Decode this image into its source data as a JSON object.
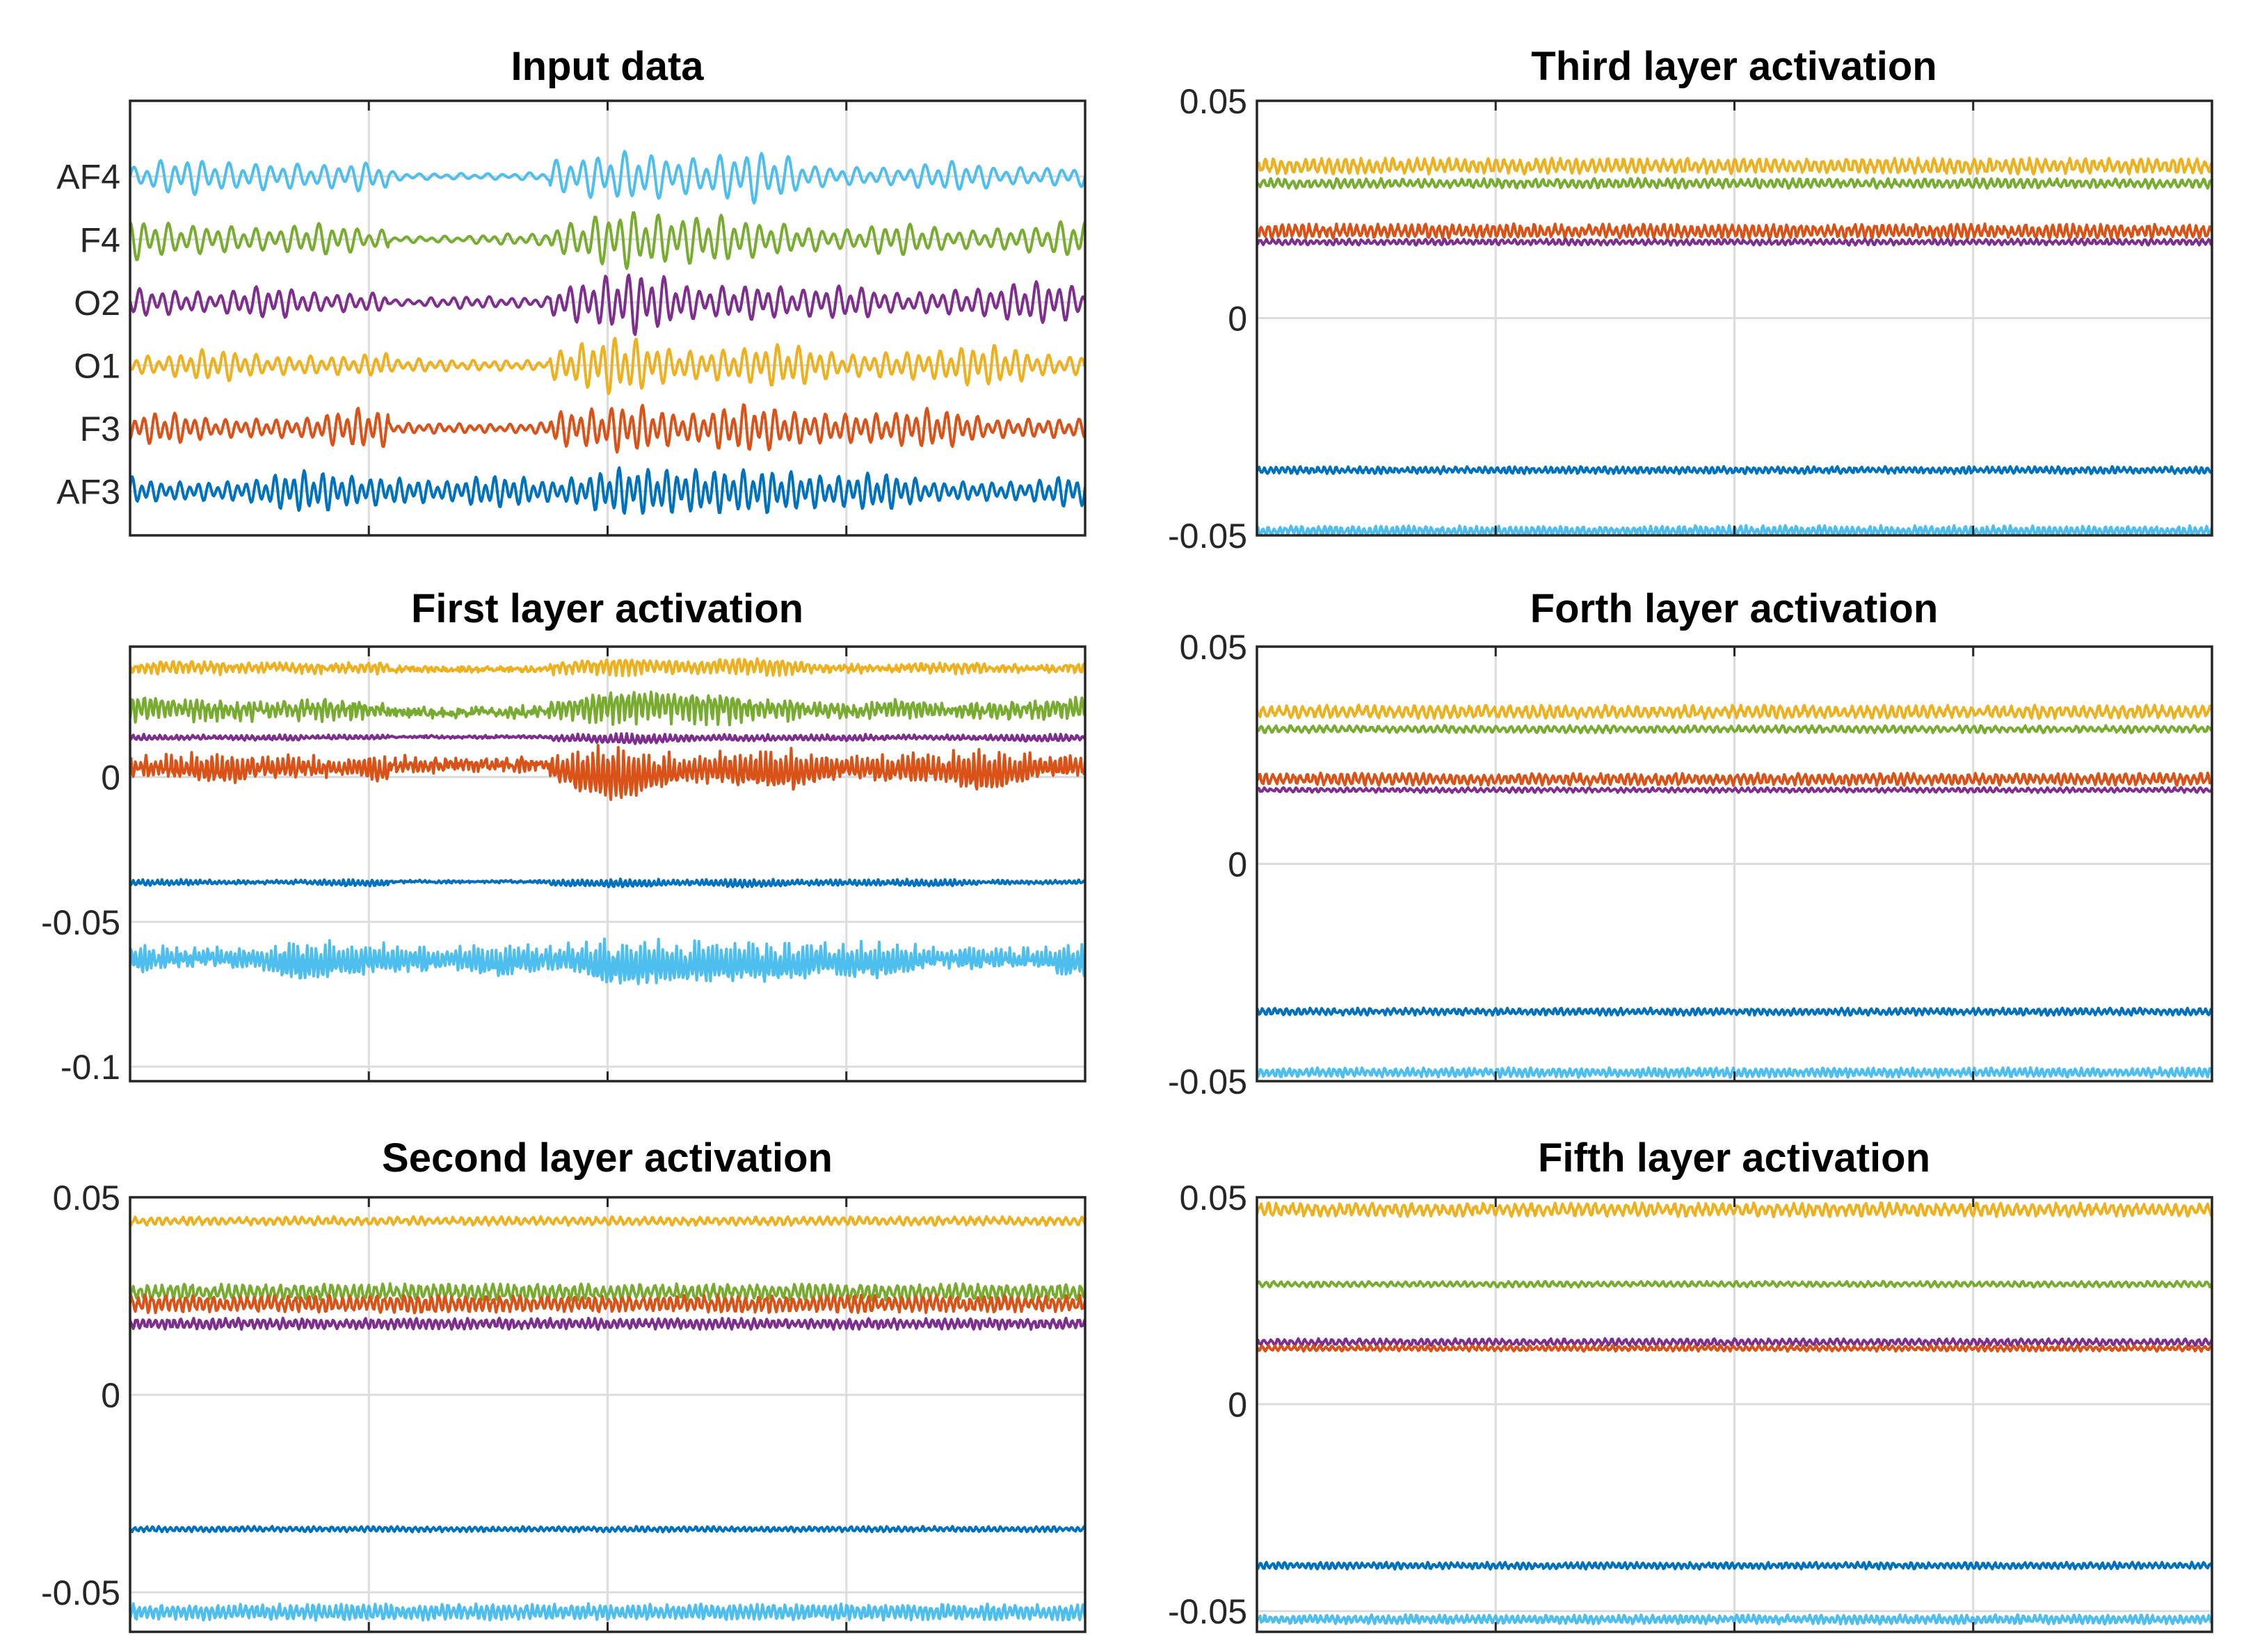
{
  "figure": {
    "series_colors": {
      "AF3": "#0072BD",
      "F3": "#D95319",
      "O1": "#EDB120",
      "O2": "#7E2F8E",
      "F4": "#77AC30",
      "AF4": "#4DBEEE"
    },
    "grid_color": "#dcdcdc",
    "axes_color": "#262626"
  },
  "chart_data": [
    {
      "id": "input",
      "type": "line",
      "title": "Input data",
      "ytick_labels": [
        "AF4",
        "F4",
        "O2",
        "O1",
        "F3",
        "AF3"
      ],
      "x_ticks": 4,
      "grid": true,
      "series": [
        {
          "name": "AF4",
          "color": "#4DBEEE",
          "offset": 6,
          "amplitude": 0.28
        },
        {
          "name": "F4",
          "color": "#77AC30",
          "offset": 5,
          "amplitude": 0.3
        },
        {
          "name": "O2",
          "color": "#7E2F8E",
          "offset": 4,
          "amplitude": 0.3
        },
        {
          "name": "O1",
          "color": "#EDB120",
          "offset": 3,
          "amplitude": 0.3
        },
        {
          "name": "F3",
          "color": "#D95319",
          "offset": 2,
          "amplitude": 0.3
        },
        {
          "name": "AF3",
          "color": "#0072BD",
          "offset": 1,
          "amplitude": 0.3
        }
      ]
    },
    {
      "id": "third",
      "type": "line",
      "title": "Third layer activation",
      "ylim": [
        -0.05,
        0.05
      ],
      "yticks": [
        -0.05,
        0,
        0.05
      ],
      "ytick_labels": [
        "-0.05",
        "0",
        "0.05"
      ],
      "grid": true,
      "series": [
        {
          "color": "#EDB120",
          "level": 0.035,
          "amplitude": 0.0013
        },
        {
          "color": "#77AC30",
          "level": 0.031,
          "amplitude": 0.0008
        },
        {
          "color": "#D95319",
          "level": 0.02,
          "amplitude": 0.0012
        },
        {
          "color": "#7E2F8E",
          "level": 0.0175,
          "amplitude": 0.0005
        },
        {
          "color": "#0072BD",
          "level": -0.035,
          "amplitude": 0.0006
        },
        {
          "color": "#4DBEEE",
          "level": -0.049,
          "amplitude": 0.0009
        }
      ]
    },
    {
      "id": "first",
      "type": "line",
      "title": "First layer activation",
      "ylim": [
        -0.105,
        0.045
      ],
      "yticks": [
        -0.1,
        -0.05,
        0
      ],
      "ytick_labels": [
        "-0.1",
        "-0.05",
        "0"
      ],
      "grid": true,
      "series": [
        {
          "color": "#EDB120",
          "level": 0.037,
          "amplitude": 0.0065
        },
        {
          "color": "#77AC30",
          "level": 0.022,
          "amplitude": 0.012
        },
        {
          "color": "#7E2F8E",
          "level": 0.014,
          "amplitude": 0.0025
        },
        {
          "color": "#D95319",
          "level": 0.005,
          "amplitude": 0.013
        },
        {
          "color": "#0072BD",
          "level": -0.036,
          "amplitude": 0.0025
        },
        {
          "color": "#4DBEEE",
          "level": -0.061,
          "amplitude": 0.013
        }
      ]
    },
    {
      "id": "forth",
      "type": "line",
      "title": "Forth layer activation",
      "ylim": [
        -0.05,
        0.05
      ],
      "yticks": [
        -0.05,
        0,
        0.05
      ],
      "ytick_labels": [
        "-0.05",
        "0",
        "0.05"
      ],
      "grid": true,
      "series": [
        {
          "color": "#EDB120",
          "level": 0.035,
          "amplitude": 0.0011
        },
        {
          "color": "#77AC30",
          "level": 0.031,
          "amplitude": 0.0006
        },
        {
          "color": "#D95319",
          "level": 0.0195,
          "amplitude": 0.001
        },
        {
          "color": "#7E2F8E",
          "level": 0.017,
          "amplitude": 0.0004
        },
        {
          "color": "#0072BD",
          "level": -0.034,
          "amplitude": 0.0006
        },
        {
          "color": "#4DBEEE",
          "level": -0.048,
          "amplitude": 0.0008
        }
      ]
    },
    {
      "id": "second",
      "type": "line",
      "title": "Second layer activation",
      "ylim": [
        -0.06,
        0.05
      ],
      "yticks": [
        -0.05,
        0,
        0.05
      ],
      "ytick_labels": [
        "-0.05",
        "0",
        "0.05"
      ],
      "grid": true,
      "series": [
        {
          "color": "#EDB120",
          "level": 0.044,
          "amplitude": 0.0008
        },
        {
          "color": "#77AC30",
          "level": 0.026,
          "amplitude": 0.0015
        },
        {
          "color": "#D95319",
          "level": 0.023,
          "amplitude": 0.0016
        },
        {
          "color": "#7E2F8E",
          "level": 0.018,
          "amplitude": 0.001
        },
        {
          "color": "#0072BD",
          "level": -0.034,
          "amplitude": 0.0005
        },
        {
          "color": "#4DBEEE",
          "level": -0.055,
          "amplitude": 0.0015
        }
      ]
    },
    {
      "id": "fifth",
      "type": "line",
      "title": "Fifth layer activation",
      "ylim": [
        -0.055,
        0.05
      ],
      "yticks": [
        -0.05,
        0,
        0.05
      ],
      "ytick_labels": [
        "-0.05",
        "0",
        "0.05"
      ],
      "grid": true,
      "series": [
        {
          "color": "#EDB120",
          "level": 0.047,
          "amplitude": 0.0012
        },
        {
          "color": "#77AC30",
          "level": 0.029,
          "amplitude": 0.0005
        },
        {
          "color": "#7E2F8E",
          "level": 0.015,
          "amplitude": 0.0006
        },
        {
          "color": "#D95319",
          "level": 0.0135,
          "amplitude": 0.0005
        },
        {
          "color": "#0072BD",
          "level": -0.039,
          "amplitude": 0.0006
        },
        {
          "color": "#4DBEEE",
          "level": -0.052,
          "amplitude": 0.0008
        }
      ]
    }
  ]
}
